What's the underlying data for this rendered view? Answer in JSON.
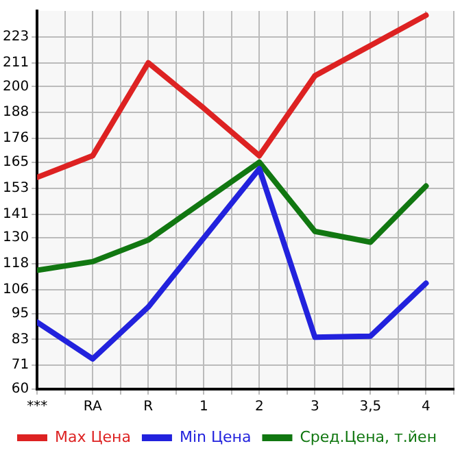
{
  "chart_data": {
    "type": "line",
    "categories": [
      "***",
      "RA",
      "R",
      "1",
      "2",
      "3",
      "3,5",
      "4"
    ],
    "series": [
      {
        "name": "Max Цена",
        "color": "#dd2222",
        "values": [
          158,
          168,
          211,
          190,
          168,
          205,
          219,
          233
        ]
      },
      {
        "name": "Min Цена",
        "color": "#2222dd",
        "values": [
          91,
          74,
          98,
          130,
          162,
          84,
          84.5,
          109
        ]
      },
      {
        "name": "Сред.Цена, т.йен",
        "color": "#117711",
        "values": [
          115,
          119,
          129,
          147,
          165,
          133,
          128,
          154
        ]
      }
    ],
    "ylim": [
      60,
      235
    ],
    "yticks": [
      60,
      71,
      83,
      95,
      106,
      118,
      130,
      141,
      153,
      165,
      176,
      188,
      200,
      211,
      223
    ],
    "grid": true,
    "legend": "bottom",
    "marker": "none",
    "line_style": "solid"
  }
}
